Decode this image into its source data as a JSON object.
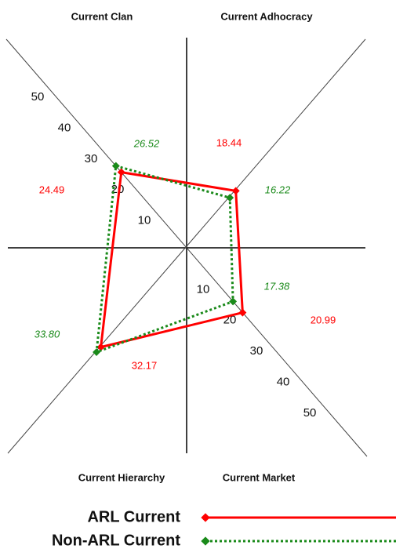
{
  "chart_data": {
    "type": "radar",
    "categories": [
      "Current Clan",
      "Current Adhocracy",
      "Current Market",
      "Current Hierarchy"
    ],
    "series": [
      {
        "name": "ARL Current",
        "color": "#ff0000",
        "style": "solid",
        "values": [
          24.49,
          18.44,
          20.99,
          32.17
        ],
        "value_labels": [
          "24.49",
          "18.44",
          "20.99",
          "32.17"
        ]
      },
      {
        "name": "Non-ARL Current",
        "color": "#1a8a1a",
        "style": "dotted",
        "values": [
          26.52,
          16.22,
          17.38,
          33.8
        ],
        "value_labels": [
          "26.52",
          "16.22",
          "17.38",
          "33.80"
        ]
      }
    ],
    "rlim": [
      0,
      50
    ],
    "rticks": [
      10,
      20,
      30,
      40,
      50
    ]
  }
}
